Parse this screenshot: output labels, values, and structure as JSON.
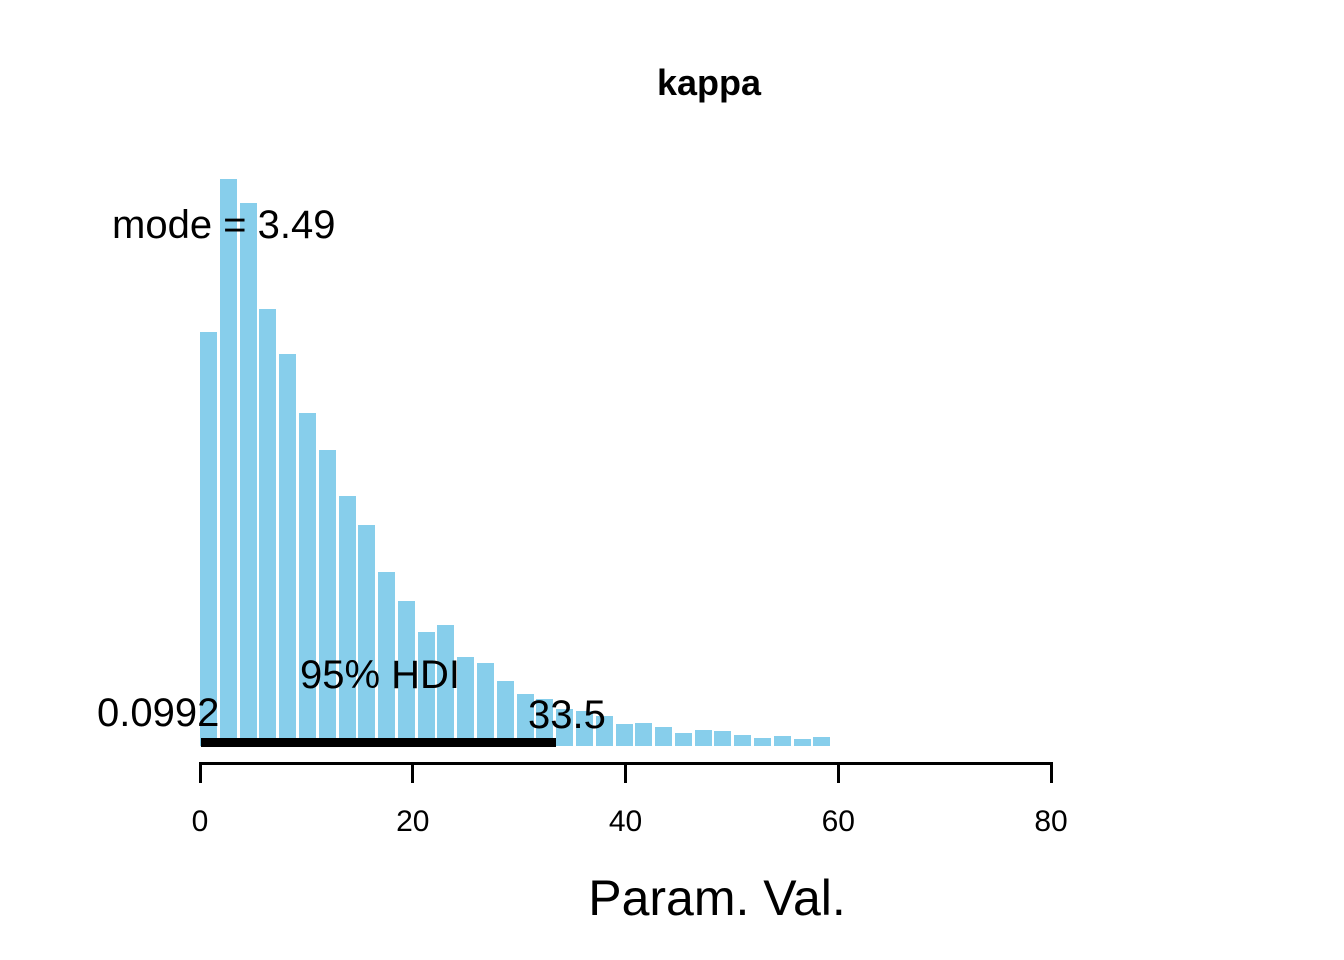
{
  "colors": {
    "bar": "#87CEEB",
    "hdi_line": "#000000",
    "axis": "#000000",
    "text": "#000000",
    "background": "#FFFFFF"
  },
  "chart_data": {
    "type": "bar",
    "subtype": "histogram",
    "title": "kappa",
    "xlabel": "Param. Val.",
    "ylabel": "",
    "mode": 3.49,
    "hdi_mass": "95%",
    "hdi_low": 0.0992,
    "hdi_high": 33.5,
    "annotations": {
      "mode_label": "mode = 3.49",
      "hdi_label": "95% HDI",
      "hdi_low_label": "0.0992",
      "hdi_high_label": "33.5"
    },
    "x_ticks": [
      0,
      20,
      40,
      60,
      80
    ],
    "xlim": [
      0,
      80
    ],
    "grid": false,
    "legend": false,
    "bin_start": 0.0,
    "bin_width": 1.86,
    "bar_heights_normalized": [
      0.73,
      1.0,
      0.958,
      0.771,
      0.691,
      0.587,
      0.522,
      0.441,
      0.39,
      0.307,
      0.256,
      0.201,
      0.213,
      0.157,
      0.146,
      0.115,
      0.092,
      0.083,
      0.065,
      0.062,
      0.053,
      0.039,
      0.041,
      0.034,
      0.023,
      0.028,
      0.026,
      0.019,
      0.014,
      0.018,
      0.012,
      0.016
    ]
  }
}
